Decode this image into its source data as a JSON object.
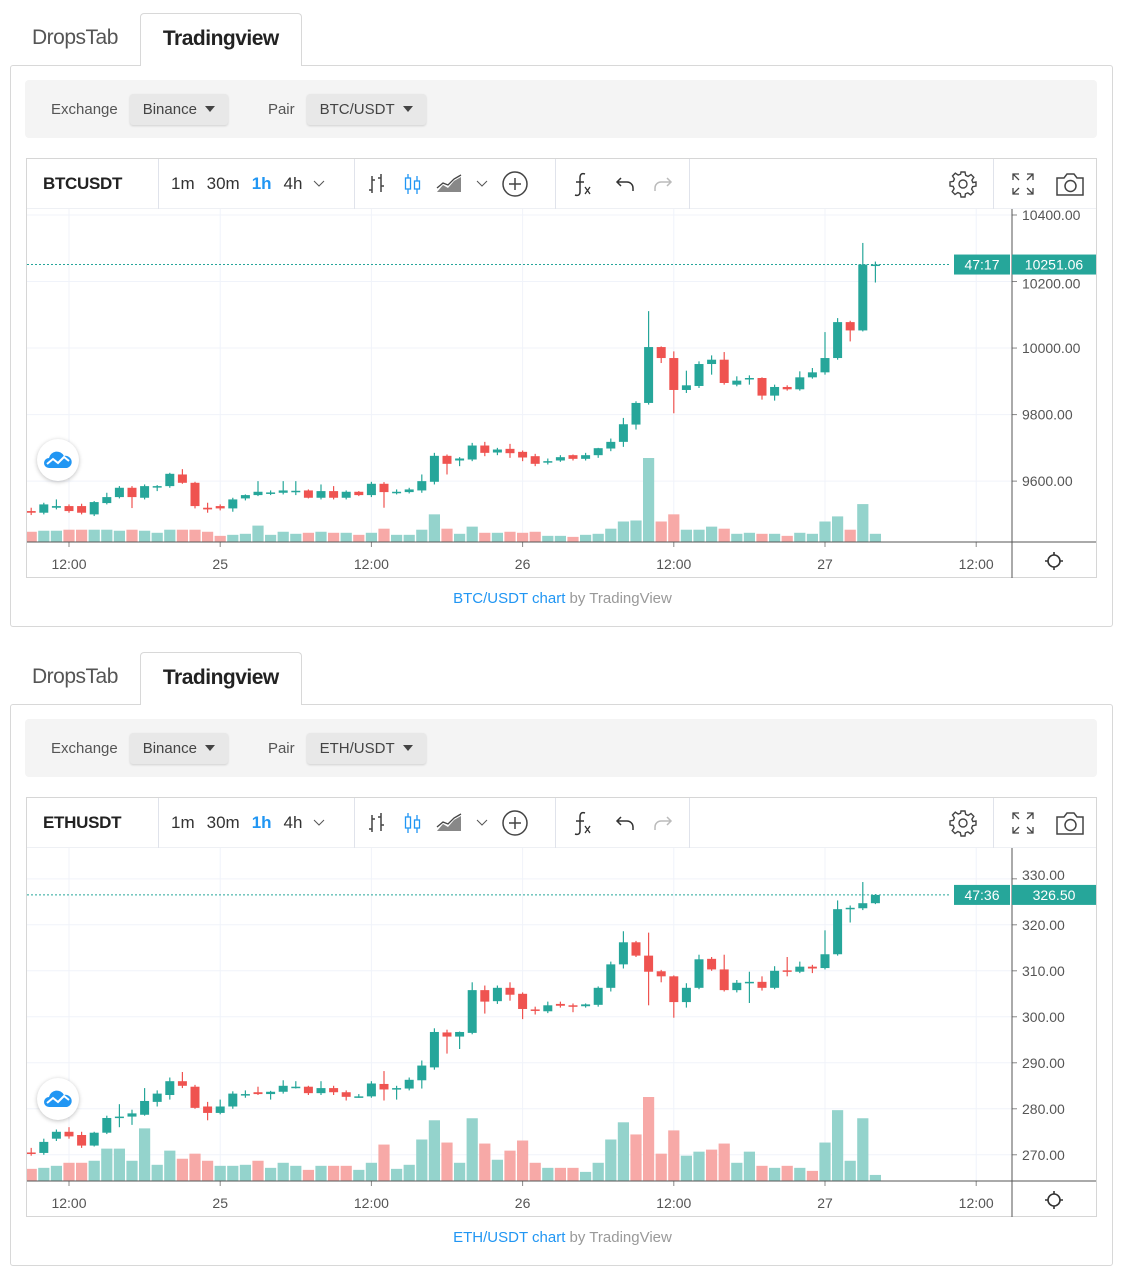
{
  "widgets": [
    {
      "tabs": [
        "DropsTab",
        "Tradingview"
      ],
      "filters": {
        "exchange_label": "Exchange",
        "exchange_value": "Binance",
        "pair_label": "Pair",
        "pair_value": "BTC/USDT"
      },
      "toolbar": {
        "symbol": "BTCUSDT",
        "intervals": [
          "1m",
          "30m",
          "1h",
          "4h"
        ]
      },
      "footer": {
        "link": "BTC/USDT chart",
        "suffix": " by TradingView"
      }
    },
    {
      "tabs": [
        "DropsTab",
        "Tradingview"
      ],
      "filters": {
        "exchange_label": "Exchange",
        "exchange_value": "Binance",
        "pair_label": "Pair",
        "pair_value": "ETH/USDT"
      },
      "toolbar": {
        "symbol": "ETHUSDT",
        "intervals": [
          "1m",
          "30m",
          "1h",
          "4h"
        ]
      },
      "footer": {
        "link": "ETH/USDT chart",
        "suffix": " by TradingView"
      }
    }
  ],
  "colors": {
    "up": "#26a69a",
    "down": "#ef5350",
    "up_volume": "#94d3cc",
    "down_volume": "#f7a9a7",
    "accent": "#2196f3",
    "grid": "#f0f3fa"
  },
  "chart_data": [
    {
      "type": "candlestick",
      "symbol": "BTCUSDT",
      "interval": "1h",
      "x_tick_labels": [
        "12:00",
        "25",
        "12:00",
        "26",
        "12:00",
        "27",
        "12:00"
      ],
      "x_tick_candle_index": [
        3,
        15,
        27,
        39,
        51,
        63,
        75
      ],
      "y_ticks": [
        "10400.00",
        "10200.00",
        "10000.00",
        "9800.00",
        "9600.00"
      ],
      "ylim": [
        9417,
        10418
      ],
      "last_price": "10251.06",
      "countdown": "47:17",
      "candles_ohlcv": [
        [
          9510,
          9520,
          9498,
          9505,
          10
        ],
        [
          9505,
          9535,
          9500,
          9530,
          11
        ],
        [
          9520,
          9545,
          9515,
          9525,
          11
        ],
        [
          9525,
          9530,
          9505,
          9510,
          12
        ],
        [
          9525,
          9532,
          9500,
          9505,
          12
        ],
        [
          9500,
          9540,
          9495,
          9537,
          12
        ],
        [
          9534,
          9565,
          9530,
          9552,
          12
        ],
        [
          9552,
          9585,
          9548,
          9580,
          11
        ],
        [
          9580,
          9585,
          9519,
          9552,
          12
        ],
        [
          9550,
          9590,
          9545,
          9585,
          11
        ],
        [
          9582,
          9588,
          9570,
          9585,
          9
        ],
        [
          9585,
          9625,
          9580,
          9622,
          12
        ],
        [
          9620,
          9636,
          9592,
          9595,
          12
        ],
        [
          9595,
          9598,
          9518,
          9525,
          12
        ],
        [
          9520,
          9535,
          9505,
          9515,
          10
        ],
        [
          9525,
          9530,
          9512,
          9518,
          6
        ],
        [
          9518,
          9550,
          9508,
          9545,
          7
        ],
        [
          9548,
          9560,
          9542,
          9558,
          8
        ],
        [
          9558,
          9600,
          9555,
          9568,
          16
        ],
        [
          9565,
          9572,
          9558,
          9566,
          7
        ],
        [
          9565,
          9600,
          9560,
          9572,
          10
        ],
        [
          9570,
          9600,
          9558,
          9571,
          8
        ],
        [
          9572,
          9575,
          9548,
          9550,
          9
        ],
        [
          9550,
          9590,
          9545,
          9570,
          10
        ],
        [
          9570,
          9585,
          9545,
          9550,
          9
        ],
        [
          9550,
          9572,
          9545,
          9568,
          9
        ],
        [
          9568,
          9570,
          9555,
          9558,
          7
        ],
        [
          9558,
          9598,
          9552,
          9592,
          9
        ],
        [
          9592,
          9597,
          9520,
          9567,
          13
        ],
        [
          9568,
          9575,
          9560,
          9568,
          7
        ],
        [
          9567,
          9580,
          9563,
          9575,
          7
        ],
        [
          9572,
          9620,
          9565,
          9600,
          12
        ],
        [
          9598,
          9685,
          9590,
          9676,
          27
        ],
        [
          9676,
          9680,
          9620,
          9652,
          13
        ],
        [
          9662,
          9672,
          9645,
          9668,
          8
        ],
        [
          9665,
          9715,
          9660,
          9707,
          15
        ],
        [
          9707,
          9718,
          9675,
          9685,
          9
        ],
        [
          9686,
          9700,
          9678,
          9695,
          9
        ],
        [
          9697,
          9712,
          9670,
          9684,
          10
        ],
        [
          9688,
          9692,
          9660,
          9671,
          9
        ],
        [
          9675,
          9682,
          9645,
          9652,
          10
        ],
        [
          9656,
          9668,
          9650,
          9660,
          6
        ],
        [
          9662,
          9678,
          9658,
          9672,
          6
        ],
        [
          9678,
          9680,
          9662,
          9667,
          5
        ],
        [
          9667,
          9685,
          9662,
          9678,
          7
        ],
        [
          9678,
          9700,
          9670,
          9699,
          8
        ],
        [
          9698,
          9728,
          9690,
          9718,
          13
        ],
        [
          9718,
          9790,
          9703,
          9771,
          20
        ],
        [
          9770,
          9840,
          9755,
          9835,
          21
        ],
        [
          9835,
          10111,
          9830,
          10003,
          82
        ],
        [
          10003,
          10005,
          9955,
          9970,
          20
        ],
        [
          9970,
          9990,
          9804,
          9874,
          27
        ],
        [
          9874,
          9932,
          9865,
          9888,
          12
        ],
        [
          9886,
          9960,
          9880,
          9952,
          12
        ],
        [
          9952,
          9978,
          9920,
          9965,
          15
        ],
        [
          9965,
          9988,
          9890,
          9895,
          13
        ],
        [
          9890,
          9915,
          9885,
          9902,
          8
        ],
        [
          9906,
          9918,
          9890,
          9910,
          9
        ],
        [
          9910,
          9912,
          9845,
          9857,
          8
        ],
        [
          9857,
          9890,
          9842,
          9883,
          8
        ],
        [
          9883,
          9888,
          9872,
          9876,
          6
        ],
        [
          9876,
          9930,
          9872,
          9912,
          9
        ],
        [
          9912,
          9940,
          9908,
          9927,
          8
        ],
        [
          9927,
          10048,
          9920,
          9970,
          20
        ],
        [
          9970,
          10090,
          9965,
          10078,
          25
        ],
        [
          10078,
          10082,
          10020,
          10053,
          12
        ],
        [
          10053,
          10316,
          10050,
          10251,
          37
        ],
        [
          10251,
          10260,
          10197,
          10251.06,
          8
        ]
      ]
    },
    {
      "type": "candlestick",
      "symbol": "ETHUSDT",
      "interval": "1h",
      "x_tick_labels": [
        "12:00",
        "25",
        "12:00",
        "26",
        "12:00",
        "27",
        "12:00"
      ],
      "x_tick_candle_index": [
        3,
        15,
        27,
        39,
        51,
        63,
        75
      ],
      "y_ticks": [
        "330.00",
        "320.00",
        "310.00",
        "300.00",
        "290.00",
        "280.00",
        "270.00"
      ],
      "ylim": [
        264.3,
        336.7
      ],
      "last_price": "326.50",
      "countdown": "47:36",
      "candles_ohlcv": [
        [
          270.5,
          271.5,
          269.8,
          270.4,
          12
        ],
        [
          270.4,
          273.5,
          270,
          272.8,
          13
        ],
        [
          273.5,
          275.5,
          273,
          275,
          15
        ],
        [
          275,
          276,
          273.5,
          274,
          18
        ],
        [
          274.3,
          275,
          271.5,
          272,
          18
        ],
        [
          272,
          275,
          271.8,
          274.8,
          20
        ],
        [
          274.8,
          278.5,
          274.5,
          278,
          32
        ],
        [
          278,
          281,
          276,
          278.3,
          32
        ],
        [
          278.3,
          279.8,
          276.5,
          279,
          20
        ],
        [
          278.7,
          284.5,
          278.5,
          281.7,
          52
        ],
        [
          281.5,
          284,
          280.5,
          283.3,
          16
        ],
        [
          283,
          286.8,
          282,
          286,
          30
        ],
        [
          286,
          288,
          284.5,
          285,
          22
        ],
        [
          284.8,
          285.2,
          280,
          280.2,
          27
        ],
        [
          280.5,
          281.5,
          277.5,
          279.1,
          20
        ],
        [
          279.1,
          282,
          278.8,
          280.5,
          15
        ],
        [
          280.5,
          283.8,
          280,
          283.3,
          15
        ],
        [
          283.2,
          284,
          282.4,
          283.2,
          16
        ],
        [
          283.6,
          284.8,
          283,
          283.2,
          20
        ],
        [
          283.2,
          283.9,
          282,
          283.7,
          13
        ],
        [
          283.7,
          286.2,
          283.3,
          285,
          18
        ],
        [
          284.8,
          286,
          284.4,
          284.8,
          15
        ],
        [
          284.8,
          285,
          283,
          283.4,
          11
        ],
        [
          283.4,
          286,
          283,
          284.5,
          15
        ],
        [
          284.5,
          285,
          283,
          283.6,
          15
        ],
        [
          283.6,
          284,
          281.8,
          282.6,
          15
        ],
        [
          282.7,
          283.2,
          282.4,
          282.7,
          11
        ],
        [
          282.7,
          286,
          282.4,
          285.5,
          18
        ],
        [
          285.4,
          288.2,
          281.8,
          284.2,
          36
        ],
        [
          284.5,
          285,
          282,
          284.5,
          12
        ],
        [
          284.4,
          286.8,
          284,
          286.3,
          16
        ],
        [
          286.2,
          290.5,
          284.4,
          289.4,
          41
        ],
        [
          289,
          297.5,
          288.5,
          296.7,
          60
        ],
        [
          296.6,
          297.2,
          292,
          295.7,
          38
        ],
        [
          295.7,
          296.8,
          293,
          296.7,
          18
        ],
        [
          296.5,
          307.5,
          296.2,
          305.8,
          62
        ],
        [
          305.8,
          306.8,
          300.7,
          303.3,
          37
        ],
        [
          303.4,
          306.8,
          302.8,
          306.3,
          21
        ],
        [
          306.3,
          307.5,
          303.5,
          304.8,
          30
        ],
        [
          305,
          305.3,
          299.5,
          301.7,
          40
        ],
        [
          301.6,
          302.2,
          300.5,
          301.3,
          18
        ],
        [
          301.2,
          303.3,
          300.8,
          302.5,
          13
        ],
        [
          302.8,
          303.3,
          302,
          302.4,
          13
        ],
        [
          302.5,
          302.9,
          301,
          302.3,
          13
        ],
        [
          302.3,
          302.9,
          302,
          302.7,
          9
        ],
        [
          302.6,
          306.6,
          302.2,
          306.3,
          18
        ],
        [
          306.3,
          312,
          305.5,
          311.4,
          41
        ],
        [
          311.4,
          318.6,
          310.5,
          316.2,
          58
        ],
        [
          316.2,
          316.5,
          313,
          313.3,
          46
        ],
        [
          313.3,
          318.3,
          302.5,
          309.8,
          83
        ],
        [
          309.9,
          310.2,
          307.5,
          308.8,
          27
        ],
        [
          308.8,
          309,
          299.8,
          303.2,
          50
        ],
        [
          303.2,
          307.3,
          302,
          306.3,
          25
        ],
        [
          306.3,
          313.5,
          306,
          312.5,
          29
        ],
        [
          312.6,
          313,
          310,
          310.3,
          31
        ],
        [
          310.3,
          313.5,
          305.5,
          305.8,
          37
        ],
        [
          305.8,
          308,
          305.3,
          307.4,
          18
        ],
        [
          307.4,
          309.8,
          303,
          307.6,
          29
        ],
        [
          307.6,
          308.8,
          305.7,
          306.3,
          15
        ],
        [
          306.3,
          311,
          306,
          310,
          13
        ],
        [
          310.1,
          313,
          308.8,
          309.8,
          15
        ],
        [
          309.8,
          312,
          309.5,
          310.9,
          13
        ],
        [
          310.9,
          311.3,
          309.5,
          310.5,
          10
        ],
        [
          310.6,
          318.8,
          310.3,
          313.6,
          38
        ],
        [
          313.6,
          325.3,
          313.3,
          323.4,
          70
        ],
        [
          323.4,
          324.2,
          320.5,
          323.7,
          20
        ],
        [
          323.6,
          329.3,
          323.2,
          324.7,
          62
        ],
        [
          324.7,
          326.7,
          324.5,
          326.5,
          6
        ]
      ]
    }
  ]
}
